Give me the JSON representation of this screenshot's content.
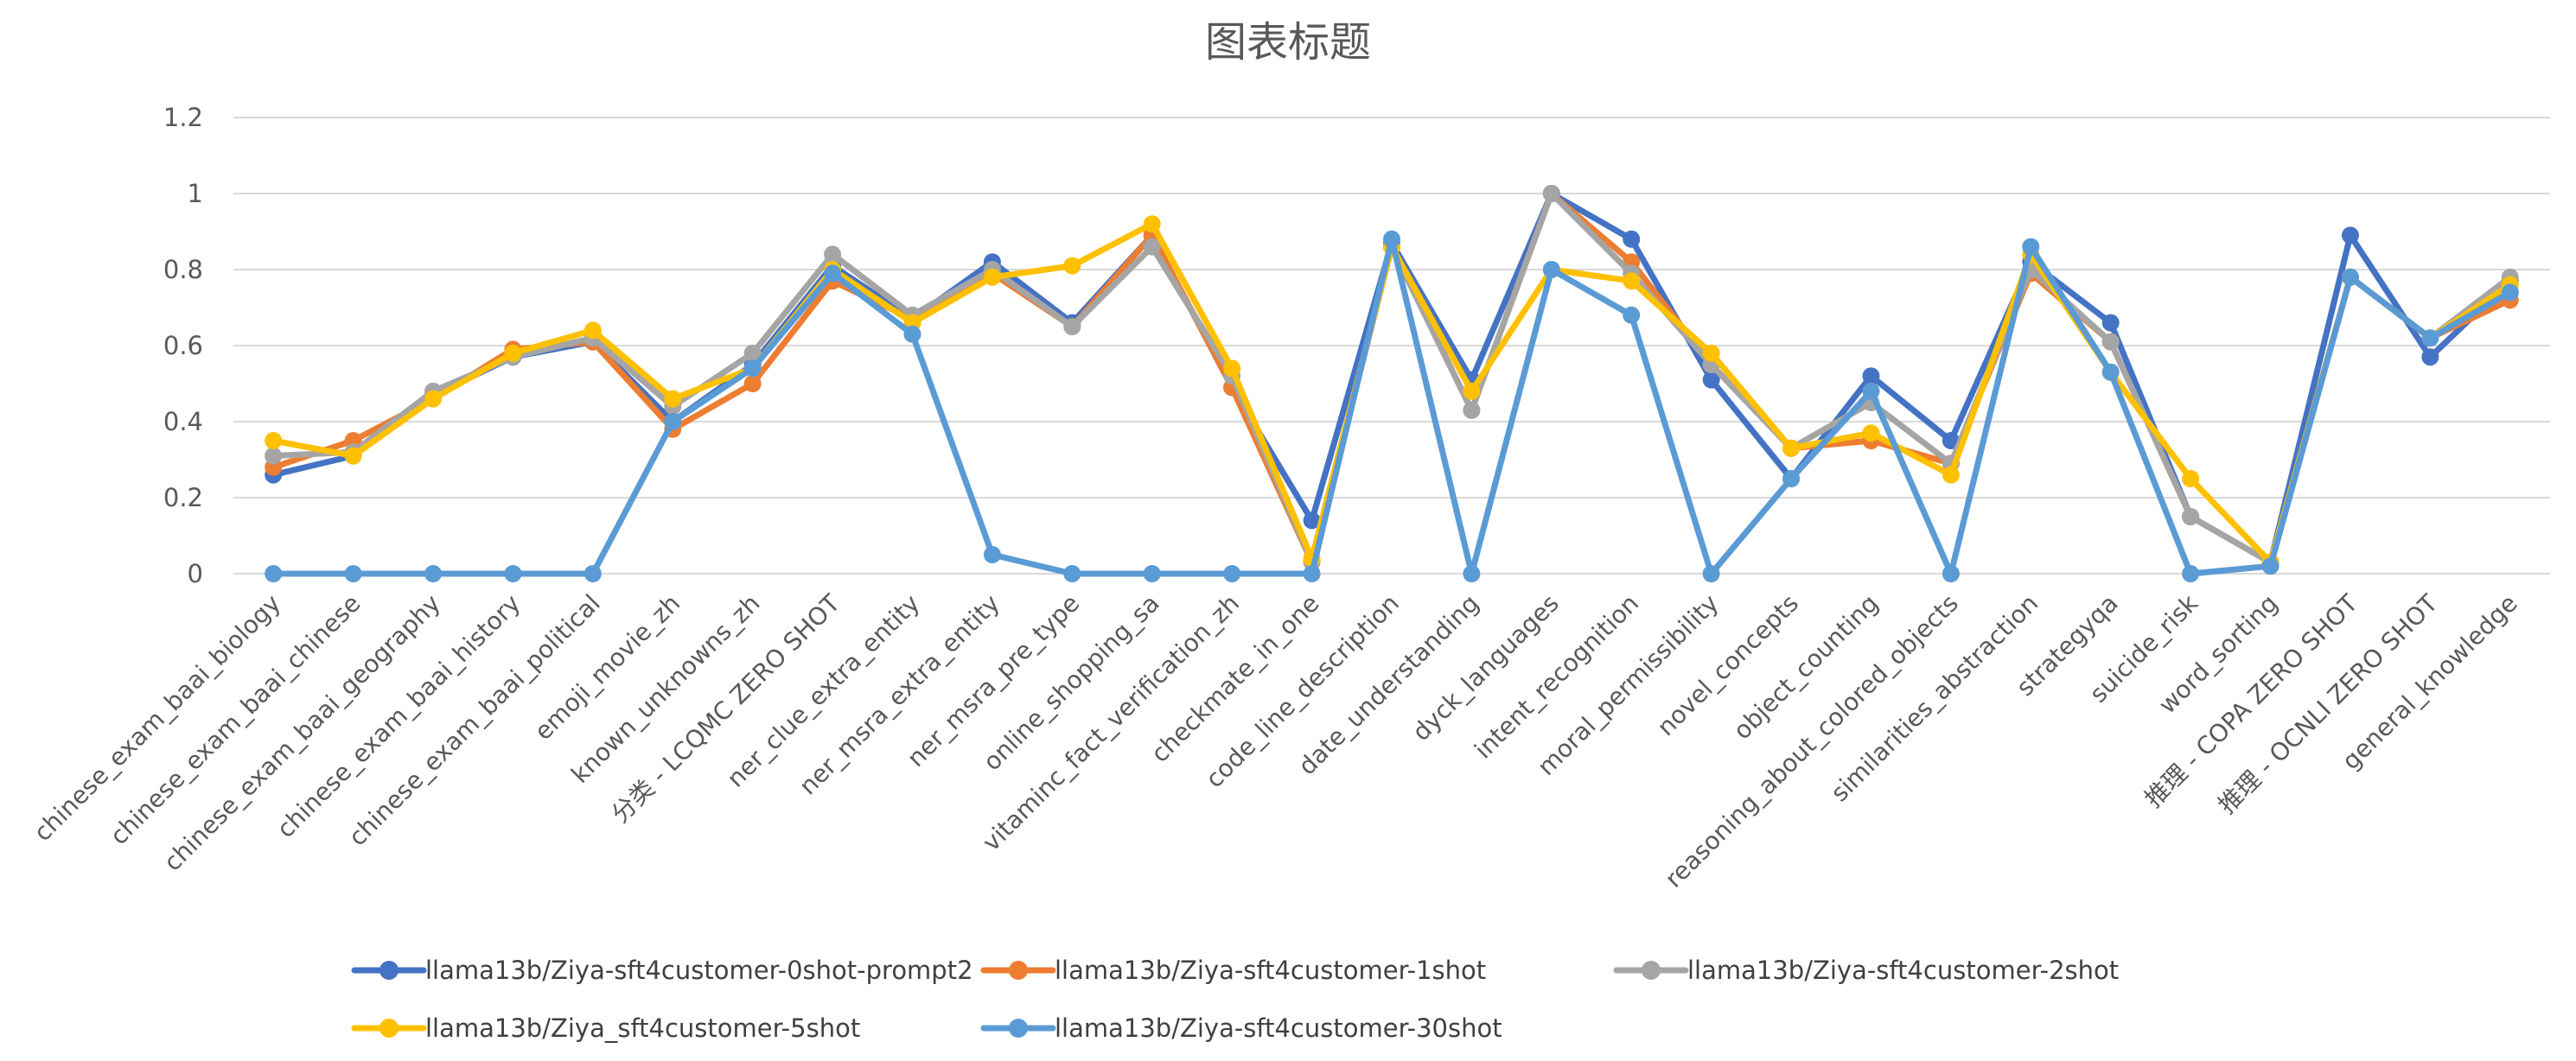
{
  "chart_data": {
    "type": "line",
    "title": "图表标题",
    "xlabel": "",
    "ylabel": "",
    "ylim": [
      0,
      1.2
    ],
    "yticks": [
      "0",
      "0.2",
      "0.4",
      "0.6",
      "0.8",
      "1",
      "1.2"
    ],
    "grid": true,
    "legend_position": "bottom",
    "categories": [
      "chinese_exam_baai_biology",
      "chinese_exam_baai_chinese",
      "chinese_exam_baai_geography",
      "chinese_exam_baai_history",
      "chinese_exam_baai_political",
      "emoji_movie_zh",
      "known_unknowns_zh",
      "分类 - LCQMC ZERO SHOT",
      "ner_clue_extra_entity",
      "ner_msra_extra_entity",
      "ner_msra_pre_type",
      "online_shopping_sa",
      "vitaminc_fact_verification_zh",
      "checkmate_in_one",
      "code_line_description",
      "date_understanding",
      "dyck_languages",
      "intent_recognition",
      "moral_permissibility",
      "novel_concepts",
      "object_counting",
      "reasoning_about_colored_objects",
      "similarities_abstraction",
      "strategyqa",
      "suicide_risk",
      "word_sorting",
      "推理 - COPA ZERO SHOT",
      "推理 - OCNLI ZERO SHOT",
      "general_knowledge"
    ],
    "series": [
      {
        "name": "llama13b/Ziya-sft4customer-0shot-prompt2",
        "color": "#4472c4",
        "values": [
          0.26,
          0.31,
          0.47,
          0.57,
          0.61,
          0.4,
          0.55,
          0.81,
          0.67,
          0.82,
          0.66,
          0.89,
          0.49,
          0.14,
          0.87,
          0.51,
          1.0,
          0.88,
          0.51,
          0.25,
          0.52,
          0.35,
          0.82,
          0.66,
          0.15,
          0.03,
          0.89,
          0.57,
          0.77
        ]
      },
      {
        "name": "llama13b/Ziya-sft4customer-1shot",
        "color": "#ed7d31",
        "values": [
          0.28,
          0.35,
          0.46,
          0.59,
          0.61,
          0.38,
          0.5,
          0.77,
          0.67,
          0.79,
          0.65,
          0.89,
          0.49,
          0.03,
          0.86,
          0.43,
          1.0,
          0.82,
          0.55,
          0.33,
          0.35,
          0.29,
          0.79,
          0.61,
          0.15,
          0.03,
          0.78,
          0.62,
          0.72
        ]
      },
      {
        "name": "llama13b/Ziya-sft4customer-2shot",
        "color": "#a5a5a5",
        "values": [
          0.31,
          0.32,
          0.48,
          0.57,
          0.62,
          0.44,
          0.58,
          0.84,
          0.68,
          0.8,
          0.65,
          0.86,
          0.52,
          0.03,
          0.86,
          0.43,
          1.0,
          0.79,
          0.55,
          0.33,
          0.45,
          0.29,
          0.8,
          0.61,
          0.15,
          0.03,
          0.78,
          0.62,
          0.78
        ]
      },
      {
        "name": "llama13b/Ziya_sft4customer-5shot",
        "color": "#ffc000",
        "values": [
          0.35,
          0.31,
          0.46,
          0.58,
          0.64,
          0.46,
          0.54,
          0.8,
          0.66,
          0.78,
          0.81,
          0.92,
          0.54,
          0.04,
          0.86,
          0.48,
          0.8,
          0.77,
          0.58,
          0.33,
          0.37,
          0.26,
          0.84,
          0.53,
          0.25,
          0.03,
          0.78,
          0.62,
          0.76
        ]
      },
      {
        "name": "llama13b/Ziya-sft4customer-30shot",
        "color": "#5b9bd5",
        "values": [
          0,
          0,
          0,
          0,
          0,
          0.4,
          0.54,
          0.79,
          0.63,
          0.05,
          0,
          0,
          0,
          0,
          0.88,
          0,
          0.8,
          0.68,
          0,
          0.25,
          0.48,
          0,
          0.86,
          0.53,
          0,
          0.02,
          0.78,
          0.62,
          0.74
        ]
      }
    ]
  }
}
